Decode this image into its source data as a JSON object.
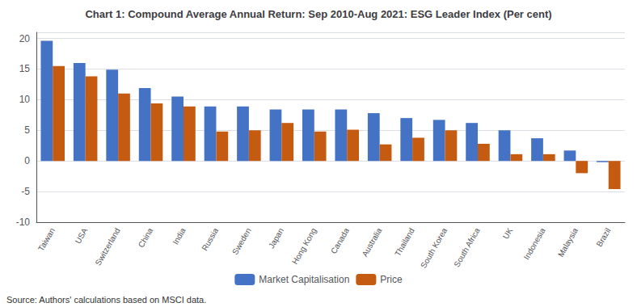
{
  "chart_data": {
    "type": "bar",
    "title": "Chart 1: Compound Average Annual Return: Sep 2010-Aug 2021: ESG Leader Index (Per cent)",
    "categories": [
      "Taiwan",
      "USA",
      "Switzerland",
      "China",
      "India",
      "Russia",
      "Sweden",
      "Japan",
      "Hong Kong",
      "Canada",
      "Australia",
      "Thailand",
      "South Korea",
      "South Africa",
      "UK",
      "Indonesia",
      "Malaysia",
      "Brazil"
    ],
    "series": [
      {
        "name": "Market Capitalisation",
        "color": "#4472C4",
        "values": [
          19.6,
          16.0,
          14.9,
          11.9,
          10.5,
          8.9,
          8.9,
          8.4,
          8.4,
          8.4,
          7.8,
          7.0,
          6.7,
          6.2,
          5.0,
          3.7,
          1.7,
          -0.2
        ]
      },
      {
        "name": "Price",
        "color": "#C55A11",
        "values": [
          15.5,
          13.8,
          11.0,
          9.4,
          8.9,
          4.8,
          5.0,
          6.2,
          4.8,
          5.1,
          2.7,
          3.8,
          5.0,
          2.8,
          1.1,
          1.1,
          -2.0,
          -4.6
        ]
      }
    ],
    "ylim": [
      -10,
      21
    ],
    "yticks": [
      -10,
      -5,
      0,
      5,
      10,
      15,
      20
    ],
    "grid": true,
    "legend": "bottom",
    "annotations": [
      "Source: Authors' calculations based on MSCI data."
    ]
  }
}
